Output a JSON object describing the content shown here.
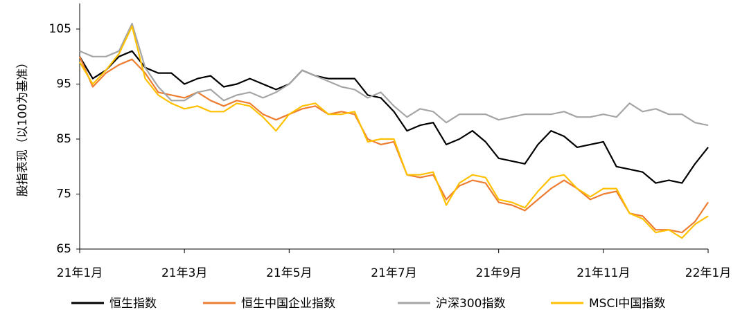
{
  "chart_data": {
    "type": "line",
    "y_label": "股指表现（以100为基准）",
    "categories": [
      "21年1月",
      null,
      null,
      null,
      null,
      null,
      null,
      null,
      "21年3月",
      null,
      null,
      null,
      null,
      null,
      null,
      null,
      "21年5月",
      null,
      null,
      null,
      null,
      null,
      null,
      null,
      "21年7月",
      null,
      null,
      null,
      null,
      null,
      null,
      null,
      "21年9月",
      null,
      null,
      null,
      null,
      null,
      null,
      null,
      "21年11月",
      null,
      null,
      null,
      null,
      null,
      null,
      null,
      "22年1月"
    ],
    "ylim": [
      65,
      110
    ],
    "yticks": [
      65,
      75,
      85,
      95,
      105
    ],
    "series": [
      {
        "name": "恒生指数",
        "color": "#000000",
        "values": [
          100,
          96,
          97.5,
          100,
          101,
          98,
          97,
          97,
          95,
          96,
          96.5,
          94.5,
          95,
          96,
          95,
          94,
          95,
          97.5,
          96.5,
          96,
          96,
          96,
          93,
          92.5,
          90,
          86.5,
          87.5,
          88,
          84,
          85,
          86.5,
          84.5,
          81.5,
          81,
          80.5,
          84,
          86.5,
          85.5,
          83.5,
          84,
          84.5,
          80,
          79.5,
          79,
          77,
          77.5,
          77,
          80.5,
          83.5
        ]
      },
      {
        "name": "恒生中国企业指数",
        "color": "#ed7d31",
        "values": [
          100,
          94.5,
          97,
          98.5,
          99.5,
          97,
          93.5,
          93,
          92.5,
          93.5,
          92,
          91,
          92,
          91.5,
          89.5,
          88.5,
          89.5,
          90.5,
          91,
          89.5,
          90,
          89.5,
          85,
          84,
          84.5,
          78.5,
          78,
          78.5,
          74,
          76.5,
          77.5,
          77,
          73.5,
          73,
          72,
          74,
          76,
          77.5,
          76,
          74,
          75,
          75.5,
          71.5,
          71,
          68.5,
          68.5,
          68,
          70,
          73.5
        ]
      },
      {
        "name": "沪深300指数",
        "color": "#a5a5a5",
        "values": [
          101,
          100,
          100,
          101,
          106,
          98,
          94.5,
          92,
          92,
          93.5,
          94,
          92,
          93,
          93.5,
          92.5,
          93.5,
          95,
          97.5,
          96.5,
          95.5,
          94.5,
          94,
          92.5,
          93.5,
          91,
          89,
          90.5,
          90,
          88,
          89.5,
          89.5,
          89.5,
          88.5,
          89,
          89.5,
          89.5,
          89.5,
          90,
          89,
          89,
          89.5,
          89,
          91.5,
          90,
          90.5,
          89.5,
          89.5,
          88,
          87.5
        ]
      },
      {
        "name": "MSCI中国指数",
        "color": "#ffc000",
        "values": [
          99,
          95,
          97.5,
          100.5,
          105.5,
          96,
          93,
          91.5,
          90.5,
          91,
          90,
          90,
          91.5,
          91,
          89,
          86.5,
          89.5,
          91,
          91.5,
          89.5,
          89.5,
          90,
          84.5,
          85,
          85,
          78.5,
          78.5,
          79,
          73,
          77,
          78.5,
          78,
          74,
          73.5,
          72.5,
          75.5,
          78,
          78.5,
          76,
          74.5,
          76,
          76,
          71.5,
          70.5,
          68,
          68.5,
          67,
          69.5,
          71
        ]
      }
    ]
  }
}
